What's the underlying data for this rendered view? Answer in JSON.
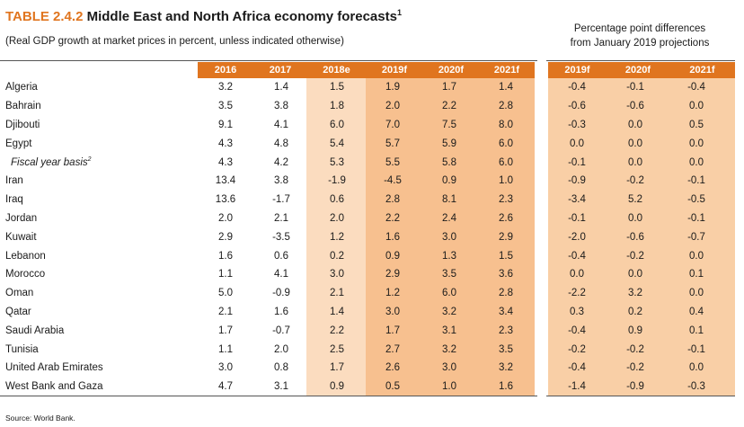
{
  "title": {
    "number": "TABLE 2.4.2",
    "text": "Middle East and North Africa economy forecasts",
    "footnote_mark": "1"
  },
  "subtitle": "(Real GDP growth at market prices in percent, unless indicated otherwise)",
  "diff_heading": {
    "line1": "Percentage point differences",
    "line2": "from January 2019 projections"
  },
  "columns": [
    "2016",
    "2017",
    "2018e",
    "2019f",
    "2020f",
    "2021f"
  ],
  "diff_columns": [
    "2019f",
    "2020f",
    "2021f"
  ],
  "rows": [
    {
      "label": "Algeria",
      "values": [
        "3.2",
        "1.4",
        "1.5",
        "1.9",
        "1.7",
        "1.4"
      ],
      "diffs": [
        "-0.4",
        "-0.1",
        "-0.4"
      ]
    },
    {
      "label": "Bahrain",
      "values": [
        "3.5",
        "3.8",
        "1.8",
        "2.0",
        "2.2",
        "2.8"
      ],
      "diffs": [
        "-0.6",
        "-0.6",
        "0.0"
      ]
    },
    {
      "label": "Djibouti",
      "values": [
        "9.1",
        "4.1",
        "6.0",
        "7.0",
        "7.5",
        "8.0"
      ],
      "diffs": [
        "-0.3",
        "0.0",
        "0.5"
      ]
    },
    {
      "label": "Egypt",
      "values": [
        "4.3",
        "4.8",
        "5.4",
        "5.7",
        "5.9",
        "6.0"
      ],
      "diffs": [
        "0.0",
        "0.0",
        "0.0"
      ]
    },
    {
      "label": "Fiscal year basis",
      "footnote_mark": "2",
      "indent": true,
      "values": [
        "4.3",
        "4.2",
        "5.3",
        "5.5",
        "5.8",
        "6.0"
      ],
      "diffs": [
        "-0.1",
        "0.0",
        "0.0"
      ]
    },
    {
      "label": "Iran",
      "values": [
        "13.4",
        "3.8",
        "-1.9",
        "-4.5",
        "0.9",
        "1.0"
      ],
      "diffs": [
        "-0.9",
        "-0.2",
        "-0.1"
      ]
    },
    {
      "label": "Iraq",
      "values": [
        "13.6",
        "-1.7",
        "0.6",
        "2.8",
        "8.1",
        "2.3"
      ],
      "diffs": [
        "-3.4",
        "5.2",
        "-0.5"
      ]
    },
    {
      "label": "Jordan",
      "values": [
        "2.0",
        "2.1",
        "2.0",
        "2.2",
        "2.4",
        "2.6"
      ],
      "diffs": [
        "-0.1",
        "0.0",
        "-0.1"
      ]
    },
    {
      "label": "Kuwait",
      "values": [
        "2.9",
        "-3.5",
        "1.2",
        "1.6",
        "3.0",
        "2.9"
      ],
      "diffs": [
        "-2.0",
        "-0.6",
        "-0.7"
      ]
    },
    {
      "label": "Lebanon",
      "values": [
        "1.6",
        "0.6",
        "0.2",
        "0.9",
        "1.3",
        "1.5"
      ],
      "diffs": [
        "-0.4",
        "-0.2",
        "0.0"
      ]
    },
    {
      "label": "Morocco",
      "values": [
        "1.1",
        "4.1",
        "3.0",
        "2.9",
        "3.5",
        "3.6"
      ],
      "diffs": [
        "0.0",
        "0.0",
        "0.1"
      ]
    },
    {
      "label": "Oman",
      "values": [
        "5.0",
        "-0.9",
        "2.1",
        "1.2",
        "6.0",
        "2.8"
      ],
      "diffs": [
        "-2.2",
        "3.2",
        "0.0"
      ]
    },
    {
      "label": "Qatar",
      "values": [
        "2.1",
        "1.6",
        "1.4",
        "3.0",
        "3.2",
        "3.4"
      ],
      "diffs": [
        "0.3",
        "0.2",
        "0.4"
      ]
    },
    {
      "label": "Saudi Arabia",
      "values": [
        "1.7",
        "-0.7",
        "2.2",
        "1.7",
        "3.1",
        "2.3"
      ],
      "diffs": [
        "-0.4",
        "0.9",
        "0.1"
      ]
    },
    {
      "label": "Tunisia",
      "values": [
        "1.1",
        "2.0",
        "2.5",
        "2.7",
        "3.2",
        "3.5"
      ],
      "diffs": [
        "-0.2",
        "-0.2",
        "-0.1"
      ]
    },
    {
      "label": "United Arab Emirates",
      "values": [
        "3.0",
        "0.8",
        "1.7",
        "2.6",
        "3.0",
        "3.2"
      ],
      "diffs": [
        "-0.4",
        "-0.2",
        "0.0"
      ]
    },
    {
      "label": "West Bank and Gaza",
      "values": [
        "4.7",
        "3.1",
        "0.9",
        "0.5",
        "1.0",
        "1.6"
      ],
      "diffs": [
        "-1.4",
        "-0.9",
        "-0.3"
      ]
    }
  ],
  "source": "Source: World Bank.",
  "colors": {
    "accent": "#e0751f",
    "estimate_shade": "#fbdcbf",
    "forecast_shade": "#f7c08f",
    "diff_shade": "#f9cfa6"
  }
}
